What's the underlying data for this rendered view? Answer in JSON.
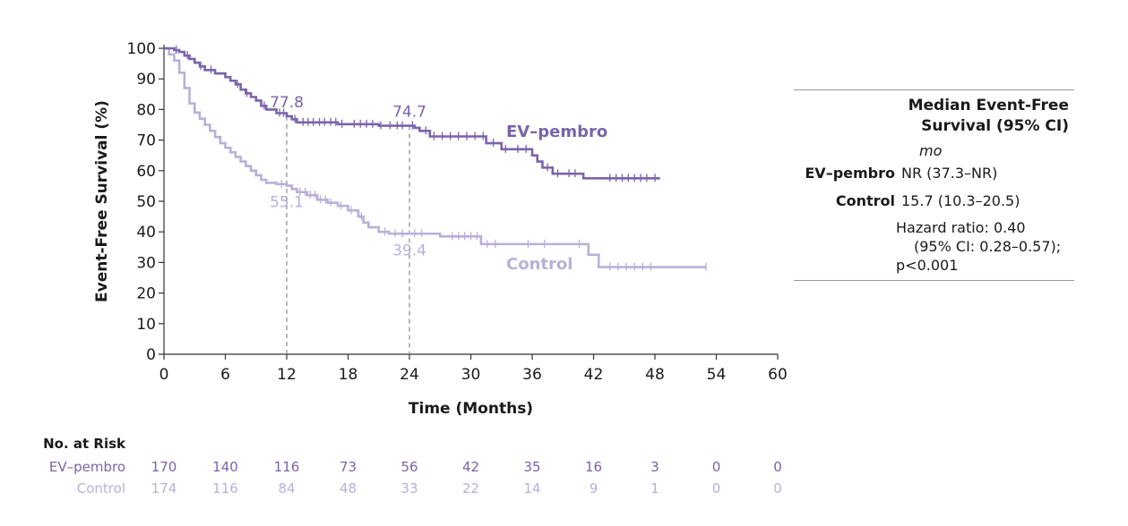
{
  "chart_data": {
    "type": "line",
    "subtype": "kaplan-meier",
    "xlabel": "Time (Months)",
    "ylabel": "Event-Free Survival (%)",
    "xlim": [
      0,
      60
    ],
    "ylim": [
      0,
      100
    ],
    "x_ticks": [
      0,
      6,
      12,
      18,
      24,
      30,
      36,
      42,
      48,
      54,
      60
    ],
    "y_ticks": [
      0,
      10,
      20,
      30,
      40,
      50,
      60,
      70,
      80,
      90,
      100
    ],
    "landmarks_x": [
      12,
      24
    ],
    "series": [
      {
        "name": "EV–pembro",
        "color": "#7a64a8",
        "steps": [
          [
            0,
            100
          ],
          [
            1,
            99.4
          ],
          [
            1.5,
            98.8
          ],
          [
            2,
            97.6
          ],
          [
            2.5,
            96.5
          ],
          [
            3,
            95.3
          ],
          [
            3.5,
            94.1
          ],
          [
            4,
            92.9
          ],
          [
            5,
            91.8
          ],
          [
            6,
            90.6
          ],
          [
            6.5,
            89.4
          ],
          [
            7,
            88.2
          ],
          [
            7.5,
            86.5
          ],
          [
            8,
            85.3
          ],
          [
            8.5,
            84.1
          ],
          [
            9,
            82.9
          ],
          [
            9.5,
            81.2
          ],
          [
            10,
            80
          ],
          [
            11,
            78.8
          ],
          [
            12,
            77.8
          ],
          [
            12.5,
            76.8
          ],
          [
            13,
            75.8
          ],
          [
            17,
            75.2
          ],
          [
            21,
            74.7
          ],
          [
            24,
            74.7
          ],
          [
            24.5,
            74
          ],
          [
            25,
            73
          ],
          [
            26,
            71.2
          ],
          [
            31.5,
            69
          ],
          [
            33,
            67
          ],
          [
            36,
            65
          ],
          [
            36.5,
            63
          ],
          [
            37,
            61
          ],
          [
            38,
            59
          ],
          [
            41,
            57.5
          ],
          [
            48.5,
            57.5
          ]
        ],
        "censor_x": [
          1.2,
          2.3,
          3.6,
          4.6,
          7.2,
          8.1,
          9.8,
          11.3,
          11.7,
          12.8,
          13.6,
          14.1,
          14.6,
          15.2,
          15.7,
          16.3,
          16.8,
          17.4,
          18.6,
          19.2,
          19.8,
          20.4,
          21.2,
          22.1,
          22.8,
          23.3,
          24.3,
          25.6,
          26.4,
          27.2,
          28,
          28.8,
          29.6,
          30.4,
          31.2,
          32.2,
          33.4,
          34.6,
          35.4,
          37.5,
          38.5,
          39.6,
          40.2,
          43.6,
          44.2,
          44.8,
          45.4,
          46,
          46.6,
          47.2,
          48
        ],
        "end_label": "EV–pembro",
        "landmarks": [
          {
            "month": 12,
            "value": 77.8,
            "label": "77.8"
          },
          {
            "month": 24,
            "value": 74.7,
            "label": "74.7"
          }
        ]
      },
      {
        "name": "Control",
        "color": "#b9b0d8",
        "steps": [
          [
            0,
            100
          ],
          [
            0.5,
            98
          ],
          [
            1,
            96
          ],
          [
            1.5,
            92
          ],
          [
            2,
            87
          ],
          [
            2.5,
            82
          ],
          [
            3,
            79
          ],
          [
            3.5,
            77
          ],
          [
            4,
            75
          ],
          [
            4.5,
            73
          ],
          [
            5,
            71
          ],
          [
            5.5,
            69
          ],
          [
            6,
            67.5
          ],
          [
            6.5,
            66
          ],
          [
            7,
            64.5
          ],
          [
            7.5,
            63
          ],
          [
            8,
            61.5
          ],
          [
            8.5,
            60
          ],
          [
            9,
            58.5
          ],
          [
            9.5,
            57
          ],
          [
            10,
            56
          ],
          [
            11,
            55.6
          ],
          [
            12,
            55.1
          ],
          [
            12.5,
            54
          ],
          [
            13,
            53
          ],
          [
            14,
            52
          ],
          [
            15,
            50.5
          ],
          [
            16,
            49.5
          ],
          [
            17,
            48.5
          ],
          [
            18,
            47
          ],
          [
            19,
            45
          ],
          [
            19.5,
            43
          ],
          [
            20,
            41.5
          ],
          [
            21,
            40
          ],
          [
            22,
            39.4
          ],
          [
            24,
            39.4
          ],
          [
            27,
            38.5
          ],
          [
            31,
            36
          ],
          [
            41,
            36
          ],
          [
            41.5,
            32.5
          ],
          [
            42.5,
            28.5
          ],
          [
            53,
            28.5
          ]
        ],
        "censor_x": [
          11.5,
          13.3,
          13.8,
          14.3,
          14.8,
          15.3,
          15.8,
          16.3,
          17.3,
          18.3,
          19.3,
          21.6,
          22.6,
          23.3,
          24.5,
          25.2,
          28.2,
          28.8,
          29.4,
          30,
          30.6,
          31.6,
          32.4,
          35.6,
          37.2,
          40.6,
          43.6,
          44.4,
          45.2,
          46,
          46.8,
          47.6,
          53
        ],
        "end_label": "Control",
        "landmarks": [
          {
            "month": 12,
            "value": 55.1,
            "label": "55.1"
          },
          {
            "month": 24,
            "value": 39.4,
            "label": "39.4"
          }
        ]
      }
    ]
  },
  "risk_table": {
    "title": "No. at Risk",
    "rows": [
      {
        "label": "EV–pembro",
        "color": "#7a64a8",
        "values": [
          "170",
          "140",
          "116",
          "73",
          "56",
          "42",
          "35",
          "16",
          "3",
          "0",
          "0"
        ]
      },
      {
        "label": "Control",
        "color": "#b9b0d8",
        "values": [
          "174",
          "116",
          "84",
          "48",
          "33",
          "22",
          "14",
          "9",
          "1",
          "0",
          "0"
        ]
      }
    ]
  },
  "summary": {
    "header_line1": "Median Event-Free",
    "header_line2": "Survival (95% CI)",
    "unit": "mo",
    "rows": [
      {
        "label": "EV–pembro",
        "value": "NR (37.3–NR)"
      },
      {
        "label": "Control",
        "value": "15.7 (10.3–20.5)"
      }
    ],
    "hr_line1": "Hazard ratio: 0.40",
    "hr_line2": "(95% CI: 0.28–0.57);",
    "hr_line3": "p<0.001"
  }
}
